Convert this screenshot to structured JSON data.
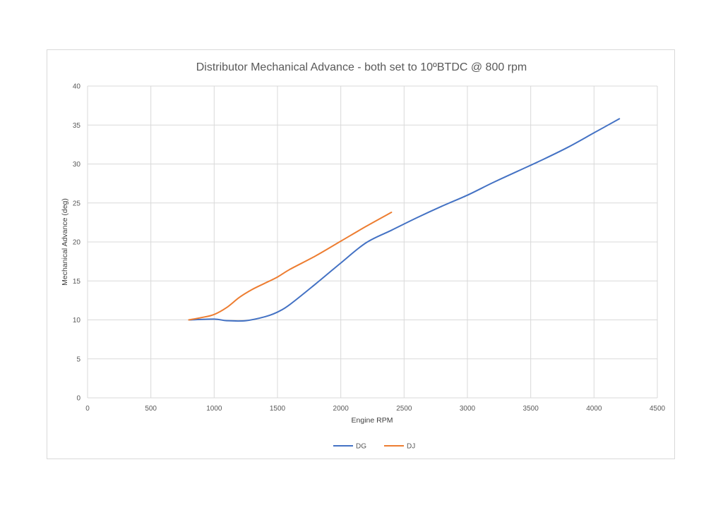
{
  "chart_data": {
    "type": "line",
    "title": "Distributor Mechanical Advance - both set to 10ºBTDC @ 800 rpm",
    "xlabel": "Engine RPM",
    "ylabel": "Mechanical Advance (deg)",
    "xlim": [
      0,
      4500
    ],
    "ylim": [
      0,
      40
    ],
    "x_ticks": [
      "0",
      "500",
      "1000",
      "1500",
      "2000",
      "2500",
      "3000",
      "3500",
      "4000",
      "4500"
    ],
    "y_ticks": [
      "0",
      "5",
      "10",
      "15",
      "20",
      "25",
      "30",
      "35",
      "40"
    ],
    "grid": true,
    "legend": "bottom",
    "series": [
      {
        "name": "DG",
        "color": "#4472c4",
        "points": [
          [
            800,
            10
          ],
          [
            1000,
            10.1
          ],
          [
            1100,
            9.9
          ],
          [
            1250,
            9.9
          ],
          [
            1400,
            10.4
          ],
          [
            1500,
            11
          ],
          [
            1600,
            12
          ],
          [
            1800,
            14.6
          ],
          [
            2000,
            17.3
          ],
          [
            2200,
            19.9
          ],
          [
            2400,
            21.5
          ],
          [
            2600,
            23.1
          ],
          [
            2800,
            24.6
          ],
          [
            3000,
            26
          ],
          [
            3200,
            27.6
          ],
          [
            3400,
            29.1
          ],
          [
            3600,
            30.6
          ],
          [
            3800,
            32.2
          ],
          [
            4000,
            34
          ],
          [
            4200,
            35.8
          ]
        ]
      },
      {
        "name": "DJ",
        "color": "#ed7d31",
        "points": [
          [
            800,
            10
          ],
          [
            900,
            10.3
          ],
          [
            1000,
            10.7
          ],
          [
            1100,
            11.6
          ],
          [
            1200,
            12.9
          ],
          [
            1300,
            13.9
          ],
          [
            1400,
            14.7
          ],
          [
            1500,
            15.5
          ],
          [
            1600,
            16.5
          ],
          [
            1800,
            18.2
          ],
          [
            2000,
            20.1
          ],
          [
            2200,
            22
          ],
          [
            2400,
            23.8
          ]
        ]
      }
    ]
  }
}
